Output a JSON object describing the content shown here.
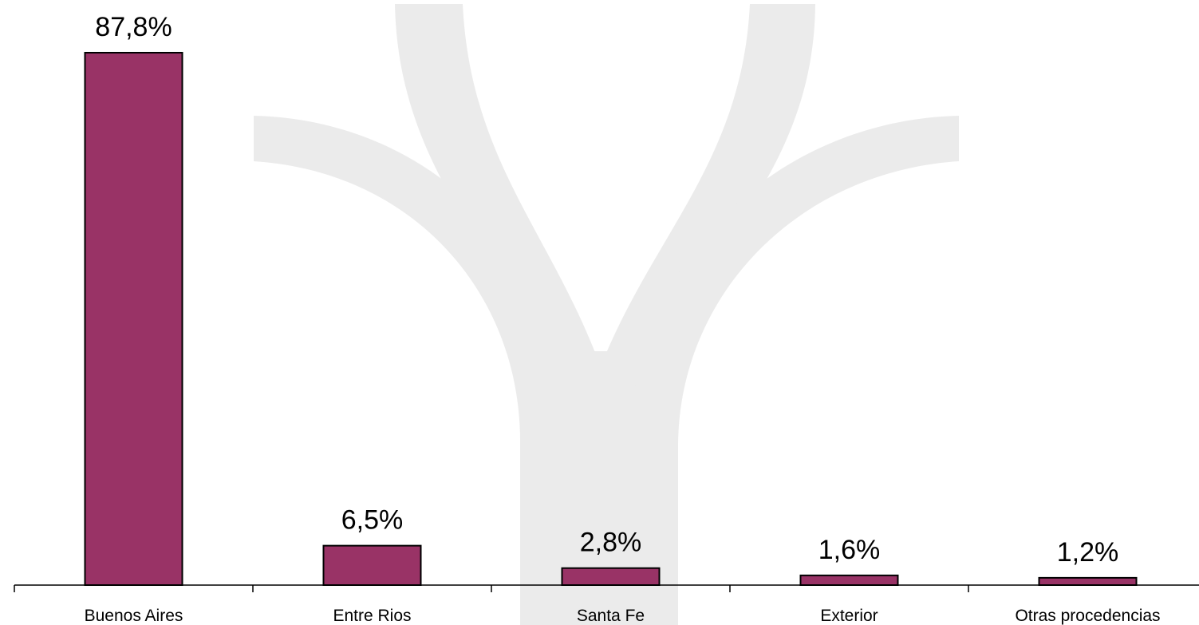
{
  "chart_data": {
    "type": "bar",
    "categories": [
      "Buenos Aires",
      "Entre Rios",
      "Santa Fe",
      "Exterior",
      "Otras procedencias"
    ],
    "values": [
      87.8,
      6.5,
      2.8,
      1.6,
      1.2
    ],
    "value_labels": [
      "87,8%",
      "6,5%",
      "2,8%",
      "1,6%",
      "1,2%"
    ],
    "title": "",
    "xlabel": "",
    "ylabel": "",
    "ylim": [
      0,
      87.8
    ],
    "grid": false,
    "legend": "none",
    "bar_color": "#993366",
    "watermark_color": "#ebebeb"
  }
}
